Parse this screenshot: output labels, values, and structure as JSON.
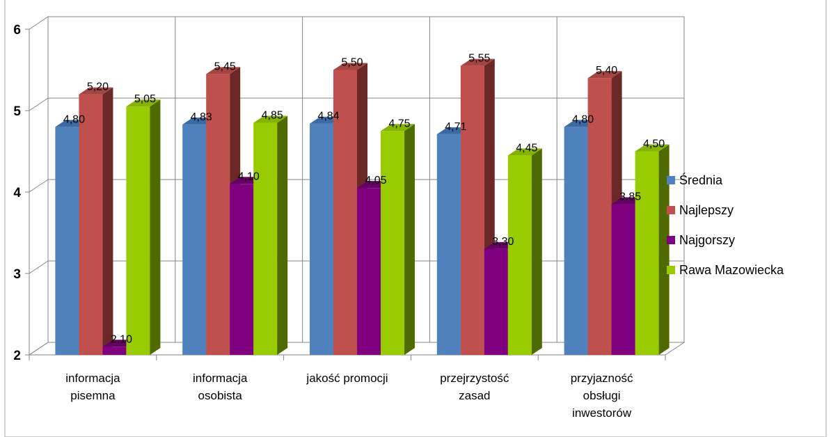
{
  "chart_data": {
    "type": "bar",
    "title": "",
    "xlabel": "",
    "ylabel": "",
    "ylim": [
      2,
      6
    ],
    "y_ticks": [
      2,
      3,
      4,
      5,
      6
    ],
    "grid": true,
    "legend_position": "right",
    "categories": [
      [
        "informacja",
        "pisemna"
      ],
      [
        "informacja",
        "osobista"
      ],
      [
        "jakość promocji"
      ],
      [
        "przejrzystość",
        "zasad"
      ],
      [
        "przyjazność",
        "obsługi",
        "inwestorów"
      ]
    ],
    "series": [
      {
        "name": "Średnia",
        "color": "#4F81BD",
        "side_color": "#2F5A8E",
        "top_color": "#3C6AA2",
        "values": [
          4.8,
          4.83,
          4.84,
          4.71,
          4.8
        ],
        "labels": [
          "4,80",
          "4,83",
          "4,84",
          "4,71",
          "4,80"
        ]
      },
      {
        "name": "Najlepszy",
        "color": "#C0504D",
        "side_color": "#6B2826",
        "top_color": "#A34542",
        "values": [
          5.2,
          5.45,
          5.5,
          5.55,
          5.4
        ],
        "labels": [
          "5,20",
          "5,45",
          "5,50",
          "5,55",
          "5,40"
        ]
      },
      {
        "name": "Najgorszy",
        "color": "#7F007F",
        "side_color": "#4B004B",
        "top_color": "#660066",
        "values": [
          2.1,
          4.1,
          4.05,
          3.3,
          3.85
        ],
        "labels": [
          "2,10",
          "4,10",
          "4,05",
          "3,30",
          "3,85"
        ]
      },
      {
        "name": "Rawa Mazowiecka",
        "color": "#99CC00",
        "side_color": "#4F6B00",
        "top_color": "#86B300",
        "values": [
          5.05,
          4.85,
          4.75,
          4.45,
          4.5
        ],
        "labels": [
          "5,05",
          "4,85",
          "4,75",
          "4,45",
          "4,50"
        ]
      }
    ]
  }
}
